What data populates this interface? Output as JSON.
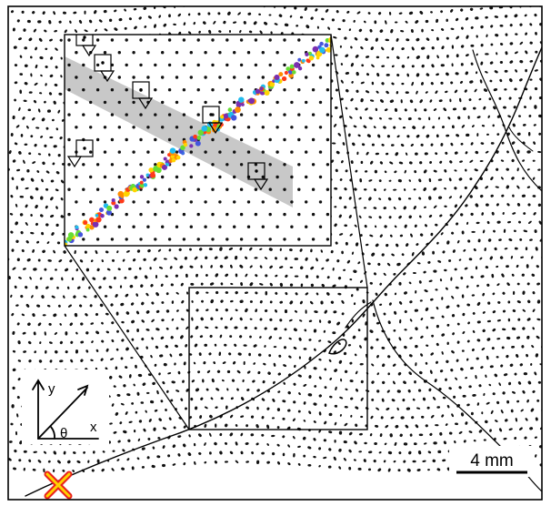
{
  "axes": {
    "y_label": "y",
    "x_label": "x",
    "angle_label": "θ"
  },
  "scale_bar": {
    "label": "4 mm"
  },
  "marker": {
    "icon": "x-cross-icon",
    "stroke": "#e8211c",
    "fill": "#ffd200"
  },
  "colors": {
    "frame": "#000000",
    "band": "#9a9a9a",
    "dots": "#111111",
    "crack_points": [
      "#ff3a1a",
      "#ff8c00",
      "#ffd400",
      "#66dd33",
      "#22bbee",
      "#4455dd",
      "#7a2fb0"
    ]
  }
}
